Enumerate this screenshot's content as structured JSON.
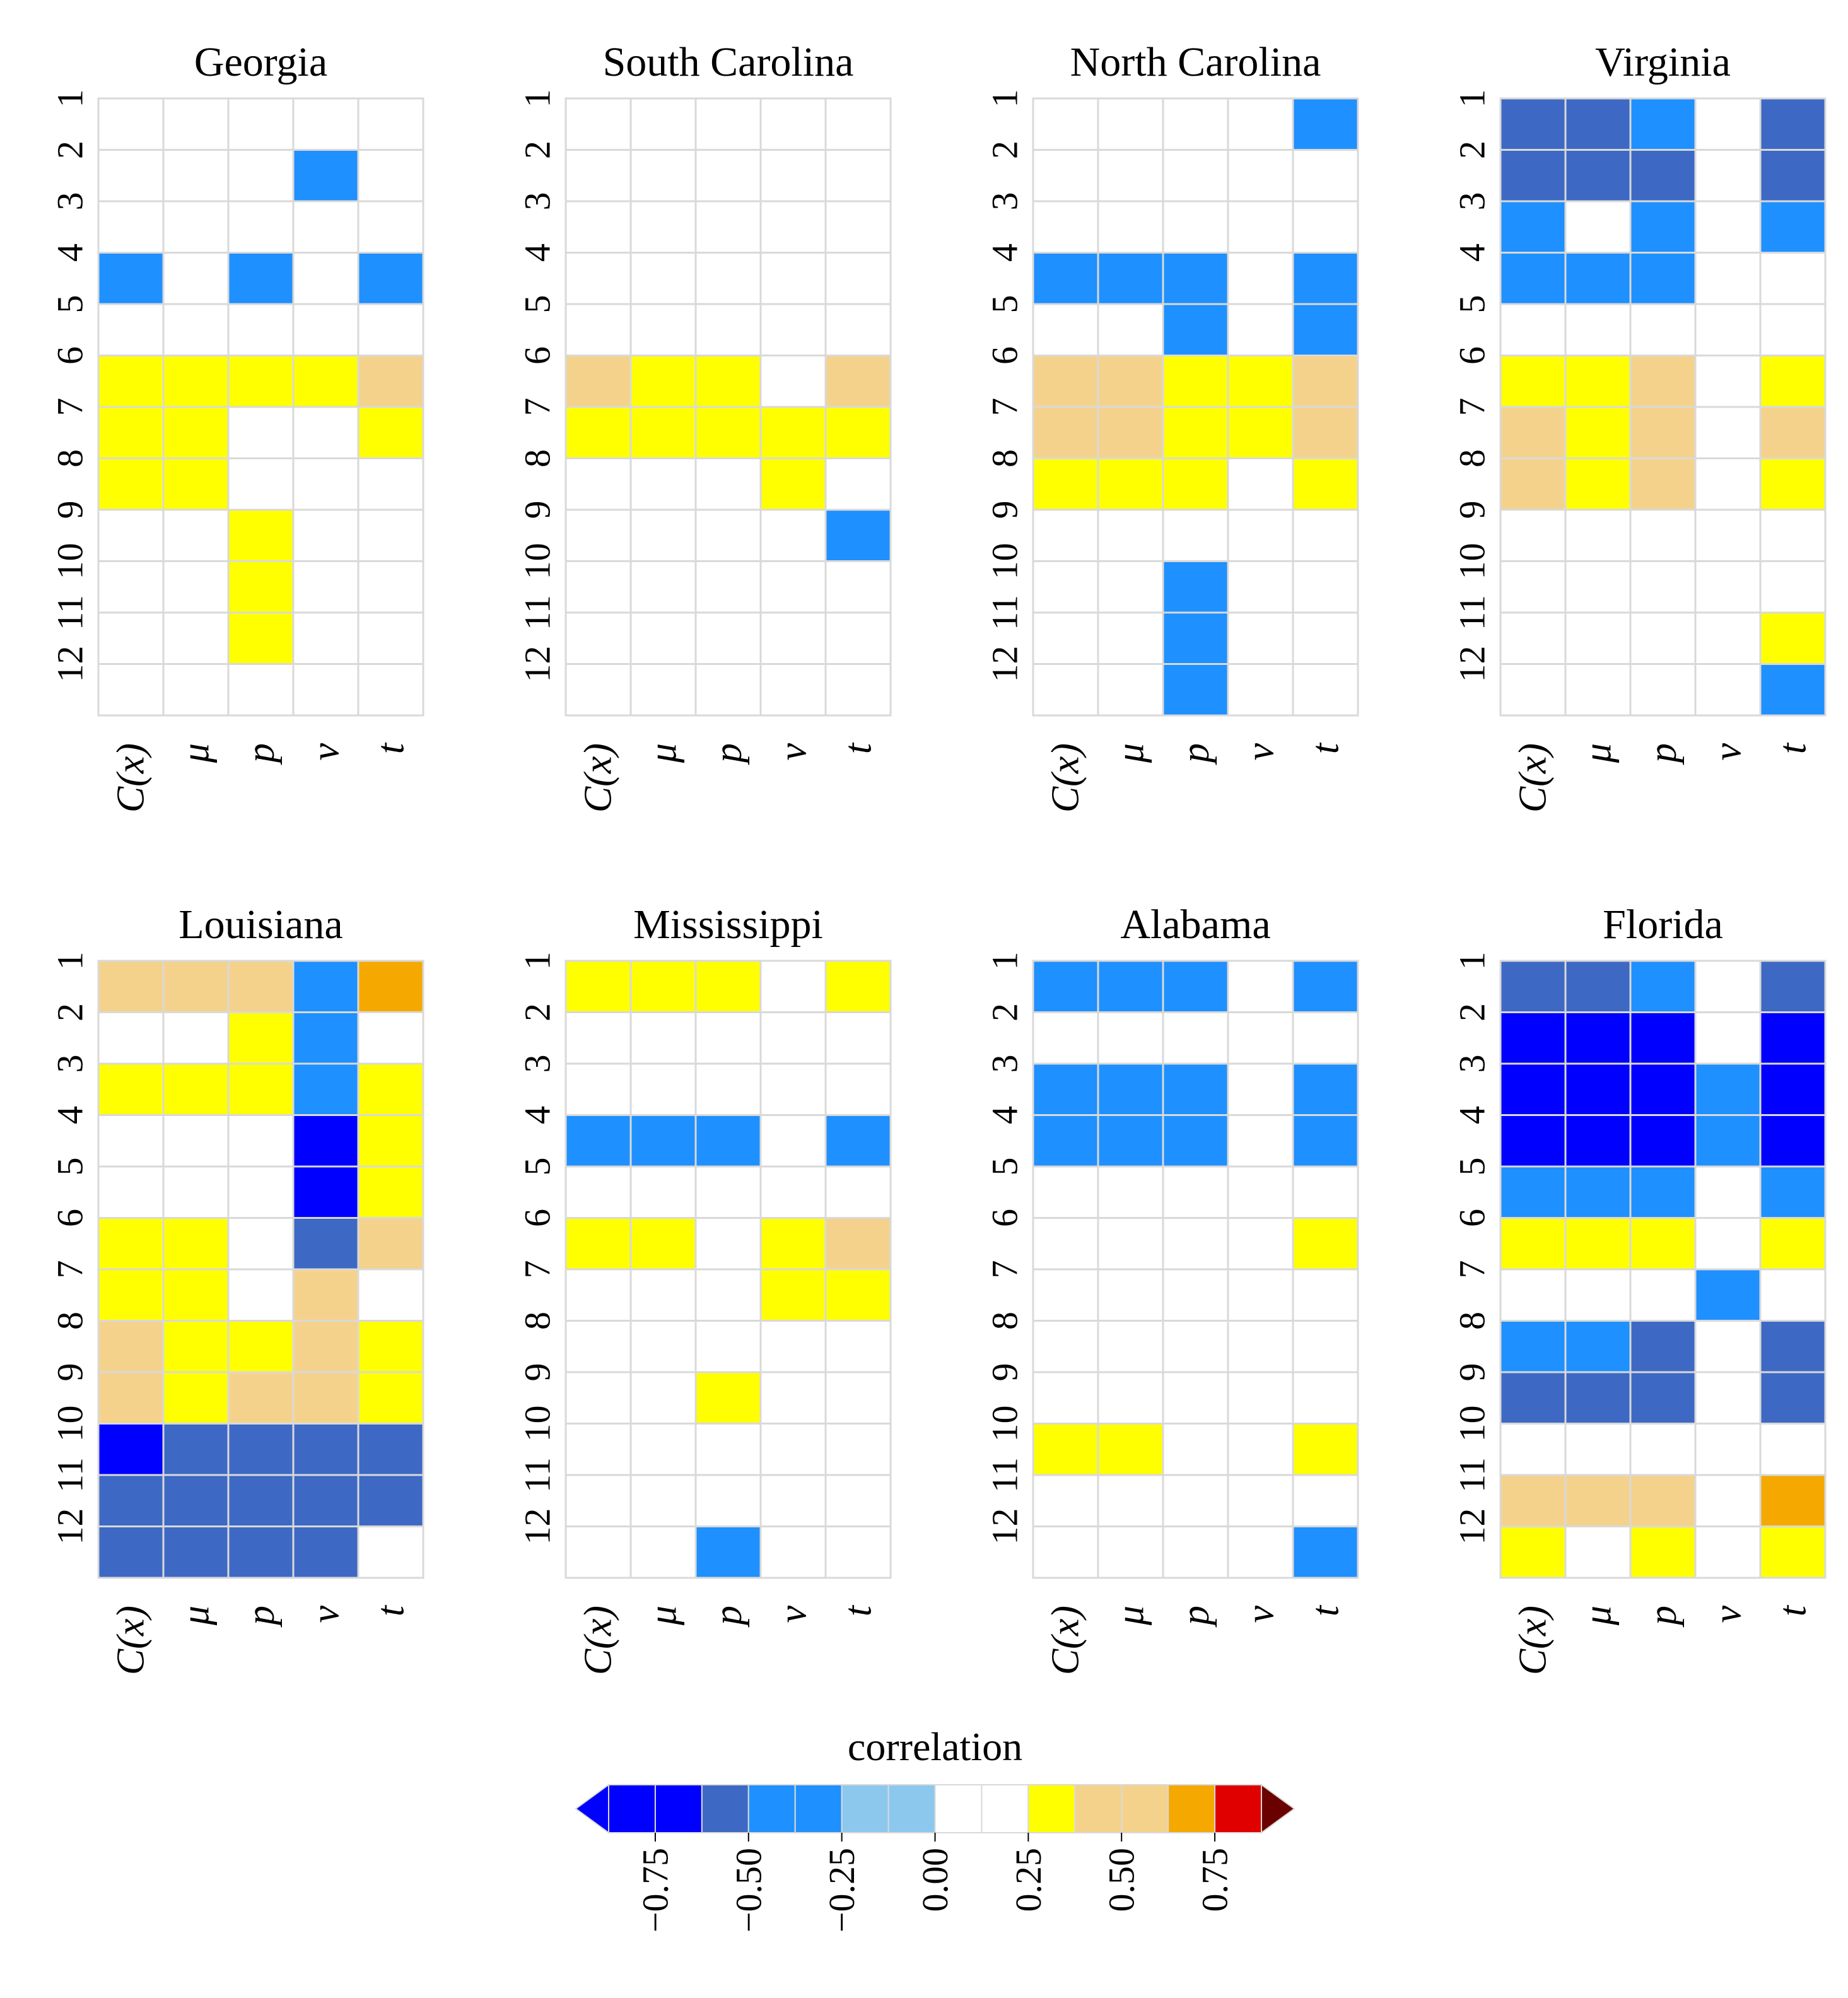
{
  "chart_data": {
    "type": "heatmap",
    "rows": [
      "1",
      "2",
      "3",
      "4",
      "5",
      "6",
      "7",
      "8",
      "9",
      "10",
      "11",
      "12"
    ],
    "columns": [
      "C(x)",
      "μ",
      "p",
      "ν",
      "t"
    ],
    "colorbar": {
      "title": "correlation",
      "boundaries": [
        -1.0,
        -0.875,
        -0.75,
        -0.625,
        -0.5,
        -0.375,
        -0.25,
        -0.125,
        0.0,
        0.125,
        0.25,
        0.375,
        0.5,
        0.625,
        0.75,
        0.875,
        1.0
      ],
      "colors": [
        "#0000ff",
        "#0000ff",
        "#0000ff",
        "#3d69c4",
        "#1e90ff",
        "#1e90ff",
        "#8cc8ee",
        "#8cc8ee",
        "#ffffff",
        "#ffffff",
        "#ffff00",
        "#f5d28c",
        "#f5d28c",
        "#f5a800",
        "#e00000",
        "#6b0000"
      ],
      "tick_values": [
        -0.75,
        -0.5,
        -0.25,
        0.0,
        0.25,
        0.5,
        0.75
      ],
      "tick_labels": [
        "−0.75",
        "−0.50",
        "−0.25",
        "0.00",
        "0.25",
        "0.50",
        "0.75"
      ],
      "arrow_low_color": "#0000ff",
      "arrow_high_color": "#6b0000"
    },
    "panels": [
      {
        "title": "Georgia",
        "values": [
          [
            0,
            0,
            0,
            0,
            0
          ],
          [
            0,
            0,
            0,
            -0.3,
            0
          ],
          [
            0,
            0,
            0,
            0,
            0
          ],
          [
            -0.3,
            0,
            -0.3,
            0,
            -0.3
          ],
          [
            0,
            0,
            0,
            0,
            0
          ],
          [
            0.3,
            0.3,
            0.3,
            0.3,
            0.45
          ],
          [
            0.3,
            0.3,
            0.15,
            0.15,
            0.3
          ],
          [
            0.3,
            0.3,
            0.15,
            0.15,
            0.15
          ],
          [
            0.15,
            0.15,
            0.3,
            0.15,
            0.15
          ],
          [
            0.15,
            0.15,
            0.3,
            0,
            0.15
          ],
          [
            0,
            0,
            0.3,
            0,
            0.15
          ],
          [
            0,
            0,
            0,
            0,
            0
          ]
        ]
      },
      {
        "title": "South Carolina",
        "values": [
          [
            0.15,
            0.15,
            0.15,
            0,
            0.15
          ],
          [
            0.15,
            0.15,
            0,
            0,
            0.15
          ],
          [
            0.15,
            0.15,
            0.15,
            0,
            0.15
          ],
          [
            0,
            0,
            0,
            0,
            0
          ],
          [
            0,
            0,
            0,
            0,
            0
          ],
          [
            0.45,
            0.3,
            0.3,
            0.15,
            0.45
          ],
          [
            0.3,
            0.3,
            0.3,
            0.3,
            0.3
          ],
          [
            0.15,
            0.15,
            0.15,
            0.3,
            0.15
          ],
          [
            0,
            0,
            0.15,
            0.15,
            -0.3
          ],
          [
            0.15,
            0.15,
            0,
            0,
            0.15
          ],
          [
            0,
            0,
            0,
            0,
            0.15
          ],
          [
            0.15,
            0.15,
            0,
            0,
            0.15
          ]
        ]
      },
      {
        "title": "North Carolina",
        "values": [
          [
            0,
            0,
            0,
            0.15,
            -0.3
          ],
          [
            0.15,
            0,
            0.15,
            0,
            0.15
          ],
          [
            0.15,
            0.15,
            0,
            0,
            0.15
          ],
          [
            -0.3,
            -0.3,
            -0.3,
            0,
            -0.3
          ],
          [
            0,
            0,
            -0.3,
            0,
            -0.3
          ],
          [
            0.45,
            0.45,
            0.3,
            0.3,
            0.45
          ],
          [
            0.45,
            0.45,
            0.3,
            0.3,
            0.45
          ],
          [
            0.3,
            0.3,
            0.3,
            0.15,
            0.3
          ],
          [
            0,
            0,
            0.15,
            0.15,
            0
          ],
          [
            0,
            0,
            -0.3,
            0,
            0.15
          ],
          [
            0,
            0,
            -0.3,
            0,
            0.15
          ],
          [
            0,
            0,
            -0.3,
            0,
            0.15
          ]
        ]
      },
      {
        "title": "Virginia",
        "values": [
          [
            -0.55,
            -0.55,
            -0.3,
            0.15,
            -0.55
          ],
          [
            -0.55,
            -0.55,
            -0.55,
            0,
            -0.55
          ],
          [
            -0.3,
            0,
            -0.3,
            0,
            -0.3
          ],
          [
            -0.3,
            -0.3,
            -0.3,
            0,
            0
          ],
          [
            0,
            0,
            0,
            0,
            0
          ],
          [
            0.3,
            0.3,
            0.45,
            0,
            0.3
          ],
          [
            0.45,
            0.3,
            0.45,
            0.15,
            0.45
          ],
          [
            0.45,
            0.3,
            0.45,
            0.15,
            0.3
          ],
          [
            0.15,
            0,
            0.15,
            0,
            0
          ],
          [
            0,
            0,
            0,
            0,
            0.15
          ],
          [
            0.15,
            0.15,
            0.15,
            0,
            0.3
          ],
          [
            0,
            0,
            0.15,
            0.15,
            -0.3
          ]
        ]
      },
      {
        "title": "Louisiana",
        "values": [
          [
            0.45,
            0.45,
            0.45,
            -0.3,
            0.7
          ],
          [
            0.15,
            0.15,
            0.3,
            -0.3,
            0.15
          ],
          [
            0.3,
            0.3,
            0.3,
            -0.3,
            0.3
          ],
          [
            0.15,
            0.15,
            0.15,
            -0.7,
            0.3
          ],
          [
            0.15,
            0.15,
            0.15,
            -0.7,
            0.3
          ],
          [
            0.3,
            0.3,
            0.15,
            -0.55,
            0.45
          ],
          [
            0.3,
            0.3,
            0.15,
            0.45,
            0.15
          ],
          [
            0.45,
            0.3,
            0.3,
            0.45,
            0.3
          ],
          [
            0.45,
            0.3,
            0.45,
            0.45,
            0.3
          ],
          [
            -0.7,
            -0.55,
            -0.55,
            -0.55,
            -0.55
          ],
          [
            -0.55,
            -0.55,
            -0.55,
            -0.55,
            -0.55
          ],
          [
            -0.55,
            -0.55,
            -0.55,
            -0.55,
            0
          ]
        ]
      },
      {
        "title": "Mississippi",
        "values": [
          [
            0.3,
            0.3,
            0.3,
            0,
            0.3
          ],
          [
            0.15,
            0.15,
            0,
            0.15,
            0
          ],
          [
            0,
            0,
            0,
            0,
            0
          ],
          [
            -0.3,
            -0.3,
            -0.3,
            0,
            -0.3
          ],
          [
            0.15,
            0.15,
            0,
            0,
            0
          ],
          [
            0.3,
            0.3,
            0.15,
            0.3,
            0.45
          ],
          [
            0.15,
            0.15,
            0.15,
            0.3,
            0.3
          ],
          [
            0,
            0,
            0.15,
            0.15,
            0
          ],
          [
            0,
            0,
            0.3,
            0.15,
            0
          ],
          [
            0,
            0,
            0,
            0,
            0.15
          ],
          [
            0,
            0,
            0,
            0,
            0.15
          ],
          [
            0.15,
            0.15,
            -0.3,
            0,
            0.15
          ]
        ]
      },
      {
        "title": "Alabama",
        "values": [
          [
            -0.3,
            -0.3,
            -0.3,
            0,
            -0.3
          ],
          [
            0,
            0,
            0,
            0,
            0
          ],
          [
            -0.3,
            -0.3,
            -0.3,
            0,
            -0.3
          ],
          [
            -0.3,
            -0.3,
            -0.3,
            0,
            -0.3
          ],
          [
            0.15,
            0.15,
            0.15,
            0.15,
            0
          ],
          [
            0.15,
            0.15,
            0.15,
            0.15,
            0.3
          ],
          [
            0.15,
            0,
            0.15,
            0.15,
            0.15
          ],
          [
            0,
            0,
            0.15,
            0.15,
            0
          ],
          [
            0,
            0,
            0.15,
            0.15,
            0
          ],
          [
            0.3,
            0.3,
            0.15,
            0.15,
            0.3
          ],
          [
            0.15,
            0.15,
            0.15,
            0.15,
            0.15
          ],
          [
            0,
            0,
            0,
            0.15,
            -0.3
          ]
        ]
      },
      {
        "title": "Florida",
        "values": [
          [
            -0.55,
            -0.55,
            -0.3,
            0.15,
            -0.55
          ],
          [
            -0.7,
            -0.7,
            -0.9,
            0,
            -0.9
          ],
          [
            -0.9,
            -0.9,
            -0.9,
            -0.3,
            -0.9
          ],
          [
            -0.9,
            -0.9,
            -0.9,
            -0.3,
            -0.9
          ],
          [
            -0.3,
            -0.3,
            -0.3,
            0,
            -0.3
          ],
          [
            0.3,
            0.3,
            0.3,
            0,
            0.3
          ],
          [
            0,
            0,
            0,
            -0.3,
            0
          ],
          [
            -0.3,
            -0.3,
            -0.55,
            0,
            -0.55
          ],
          [
            -0.55,
            -0.55,
            -0.55,
            0,
            -0.55
          ],
          [
            0.15,
            0.15,
            0.15,
            0.15,
            0.15
          ],
          [
            0.45,
            0.45,
            0.45,
            0.15,
            0.7
          ],
          [
            0.3,
            0.15,
            0.3,
            0.15,
            0.3
          ]
        ]
      }
    ]
  }
}
